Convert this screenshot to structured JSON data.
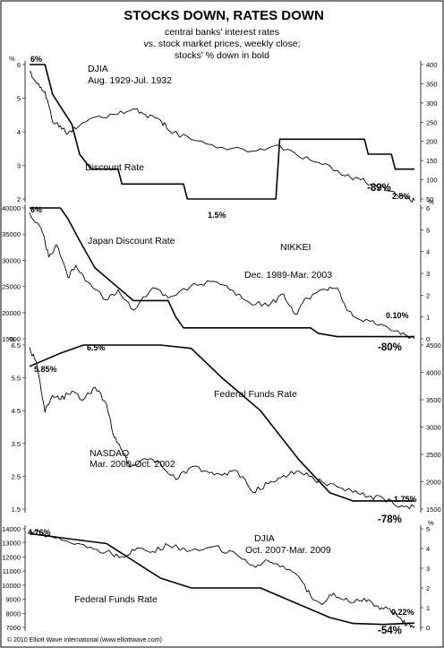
{
  "title": "STOCKS DOWN, RATES DOWN",
  "subtitle": [
    "central banks' interest rates",
    "vs. stock market prices, weekly close;",
    "stocks' % down in bold"
  ],
  "copyright": "© 2010 Elliott Wave International (www.elliottwave.com)",
  "chart_data": [
    {
      "type": "line",
      "stock_label": "DJIA",
      "stock_period": "Aug. 1929-Jul. 1932",
      "rate_label": "Discount Rate",
      "left_axis": {
        "unit": "%",
        "ticks": [
          "2",
          "3",
          "4",
          "5",
          "6"
        ]
      },
      "right_axis": {
        "ticks": [
          "50",
          "100",
          "150",
          "200",
          "250",
          "300",
          "350",
          "400"
        ]
      },
      "annotations": {
        "rate_start": "6%",
        "rate_low": "1.5%",
        "rate_end": "2.5%",
        "decline": "-89%"
      },
      "rate_series": [
        [
          0,
          6
        ],
        [
          0.04,
          6
        ],
        [
          0.06,
          5
        ],
        [
          0.11,
          4
        ],
        [
          0.13,
          3
        ],
        [
          0.16,
          2.5
        ],
        [
          0.23,
          2.5
        ],
        [
          0.24,
          2
        ],
        [
          0.4,
          2
        ],
        [
          0.41,
          1.5
        ],
        [
          0.64,
          1.5
        ],
        [
          0.65,
          3.5
        ],
        [
          0.87,
          3.5
        ],
        [
          0.88,
          3
        ],
        [
          0.94,
          3
        ],
        [
          0.95,
          2.5
        ],
        [
          1,
          2.5
        ]
      ],
      "stock_series": [
        [
          0,
          381
        ],
        [
          0.02,
          350
        ],
        [
          0.04,
          330
        ],
        [
          0.06,
          250
        ],
        [
          0.08,
          240
        ],
        [
          0.1,
          220
        ],
        [
          0.12,
          232
        ],
        [
          0.16,
          260
        ],
        [
          0.22,
          270
        ],
        [
          0.27,
          285
        ],
        [
          0.3,
          270
        ],
        [
          0.34,
          255
        ],
        [
          0.36,
          230
        ],
        [
          0.42,
          205
        ],
        [
          0.5,
          185
        ],
        [
          0.58,
          175
        ],
        [
          0.64,
          190
        ],
        [
          0.7,
          160
        ],
        [
          0.76,
          140
        ],
        [
          0.82,
          110
        ],
        [
          0.86,
          100
        ],
        [
          0.9,
          85
        ],
        [
          0.94,
          70
        ],
        [
          0.98,
          50
        ],
        [
          1,
          45
        ]
      ]
    },
    {
      "type": "line",
      "stock_label": "NIKKEI",
      "stock_period": "Dec. 1989-Mar. 2003",
      "rate_label": "Japan Discount Rate",
      "left_axis": {
        "ticks": [
          "15000",
          "20000",
          "25000",
          "30000",
          "35000",
          "40000"
        ]
      },
      "right_axis": {
        "unit": "%",
        "ticks": [
          "0",
          "1",
          "2",
          "3",
          "4",
          "5",
          "6"
        ]
      },
      "annotations": {
        "rate_start": "6%",
        "rate_end": "0.10%",
        "decline": "-80%"
      },
      "rate_series": [
        [
          0,
          6
        ],
        [
          0.08,
          6
        ],
        [
          0.1,
          5.5
        ],
        [
          0.13,
          4.5
        ],
        [
          0.17,
          3.25
        ],
        [
          0.22,
          2.5
        ],
        [
          0.27,
          1.75
        ],
        [
          0.36,
          1.75
        ],
        [
          0.38,
          1
        ],
        [
          0.4,
          0.5
        ],
        [
          0.73,
          0.5
        ],
        [
          0.75,
          0.25
        ],
        [
          0.8,
          0.1
        ],
        [
          1,
          0.1
        ]
      ],
      "stock_series": [
        [
          0,
          38900
        ],
        [
          0.03,
          35000
        ],
        [
          0.05,
          28000
        ],
        [
          0.07,
          31000
        ],
        [
          0.1,
          23000
        ],
        [
          0.12,
          26000
        ],
        [
          0.15,
          22000
        ],
        [
          0.2,
          17500
        ],
        [
          0.23,
          20000
        ],
        [
          0.27,
          15000
        ],
        [
          0.32,
          20500
        ],
        [
          0.36,
          18000
        ],
        [
          0.42,
          21000
        ],
        [
          0.47,
          22000
        ],
        [
          0.52,
          20000
        ],
        [
          0.57,
          17000
        ],
        [
          0.62,
          16000
        ],
        [
          0.66,
          19000
        ],
        [
          0.69,
          14000
        ],
        [
          0.72,
          18000
        ],
        [
          0.77,
          20000
        ],
        [
          0.8,
          20500
        ],
        [
          0.82,
          16000
        ],
        [
          0.85,
          13000
        ],
        [
          0.9,
          11500
        ],
        [
          0.94,
          10000
        ],
        [
          0.97,
          9500
        ],
        [
          1,
          8000
        ]
      ]
    },
    {
      "type": "line",
      "stock_label": "NASDAQ",
      "stock_period": "Mar. 2000-Oct. 2002",
      "rate_label": "Federal Funds Rate",
      "left_axis": {
        "unit": "%",
        "ticks": [
          "1.5",
          "2.5",
          "3.5",
          "4.5",
          "5.5",
          "6.5"
        ]
      },
      "right_axis": {
        "ticks": [
          "1500",
          "2000",
          "2500",
          "3000",
          "3500",
          "4000",
          "4500"
        ]
      },
      "annotations": {
        "rate_start": "5.85%",
        "rate_peak": "6.5%",
        "rate_end": "1.75%",
        "decline": "-78%"
      },
      "rate_series": [
        [
          0,
          5.85
        ],
        [
          0.03,
          6
        ],
        [
          0.08,
          6.25
        ],
        [
          0.14,
          6.5
        ],
        [
          0.34,
          6.5
        ],
        [
          0.42,
          6.4
        ],
        [
          0.5,
          5.5
        ],
        [
          0.6,
          4.5
        ],
        [
          0.7,
          3
        ],
        [
          0.78,
          2
        ],
        [
          0.84,
          1.75
        ],
        [
          1,
          1.75
        ]
      ],
      "stock_series": [
        [
          0,
          4950
        ],
        [
          0.02,
          4500
        ],
        [
          0.04,
          3400
        ],
        [
          0.06,
          3800
        ],
        [
          0.08,
          3700
        ],
        [
          0.11,
          3900
        ],
        [
          0.14,
          3700
        ],
        [
          0.17,
          4000
        ],
        [
          0.2,
          3600
        ],
        [
          0.22,
          2800
        ],
        [
          0.24,
          2500
        ],
        [
          0.26,
          2100
        ],
        [
          0.3,
          2300
        ],
        [
          0.34,
          2200
        ],
        [
          0.38,
          1800
        ],
        [
          0.42,
          2100
        ],
        [
          0.46,
          2000
        ],
        [
          0.5,
          1900
        ],
        [
          0.54,
          2000
        ],
        [
          0.58,
          1500
        ],
        [
          0.62,
          1700
        ],
        [
          0.66,
          1900
        ],
        [
          0.7,
          2000
        ],
        [
          0.74,
          1800
        ],
        [
          0.78,
          1700
        ],
        [
          0.84,
          1500
        ],
        [
          0.88,
          1400
        ],
        [
          0.92,
          1350
        ],
        [
          0.96,
          1150
        ],
        [
          1,
          1150
        ]
      ]
    },
    {
      "type": "line",
      "stock_label": "DJIA",
      "stock_period": "Oct. 2007-Mar. 2009",
      "rate_label": "Federal Funds Rate",
      "left_axis": {
        "ticks": [
          "7000",
          "8000",
          "9000",
          "10000",
          "11000",
          "12000",
          "13000",
          "14000"
        ]
      },
      "right_axis": {
        "unit": "%",
        "ticks": [
          "0",
          "1",
          "2",
          "3",
          "4",
          "5"
        ]
      },
      "annotations": {
        "rate_start": "4.76%",
        "rate_end": "0.22%",
        "decline": "-54%"
      },
      "rate_series": [
        [
          0,
          4.76
        ],
        [
          0.1,
          4.5
        ],
        [
          0.2,
          4.25
        ],
        [
          0.26,
          3.5
        ],
        [
          0.34,
          2.5
        ],
        [
          0.42,
          2
        ],
        [
          0.6,
          2
        ],
        [
          0.66,
          1.5
        ],
        [
          0.72,
          1
        ],
        [
          0.78,
          0.5
        ],
        [
          0.84,
          0.2
        ],
        [
          0.92,
          0.15
        ],
        [
          1,
          0.22
        ]
      ],
      "stock_series": [
        [
          0,
          14100
        ],
        [
          0.05,
          13800
        ],
        [
          0.1,
          13300
        ],
        [
          0.15,
          12800
        ],
        [
          0.2,
          12500
        ],
        [
          0.24,
          12100
        ],
        [
          0.28,
          12800
        ],
        [
          0.32,
          12500
        ],
        [
          0.36,
          13000
        ],
        [
          0.42,
          12600
        ],
        [
          0.48,
          12900
        ],
        [
          0.54,
          12200
        ],
        [
          0.58,
          11400
        ],
        [
          0.62,
          11800
        ],
        [
          0.65,
          11300
        ],
        [
          0.7,
          10500
        ],
        [
          0.73,
          9000
        ],
        [
          0.76,
          8300
        ],
        [
          0.79,
          9200
        ],
        [
          0.83,
          8500
        ],
        [
          0.87,
          8800
        ],
        [
          0.9,
          8200
        ],
        [
          0.93,
          8000
        ],
        [
          0.96,
          7300
        ],
        [
          0.98,
          6700
        ],
        [
          1,
          6600
        ]
      ]
    }
  ]
}
